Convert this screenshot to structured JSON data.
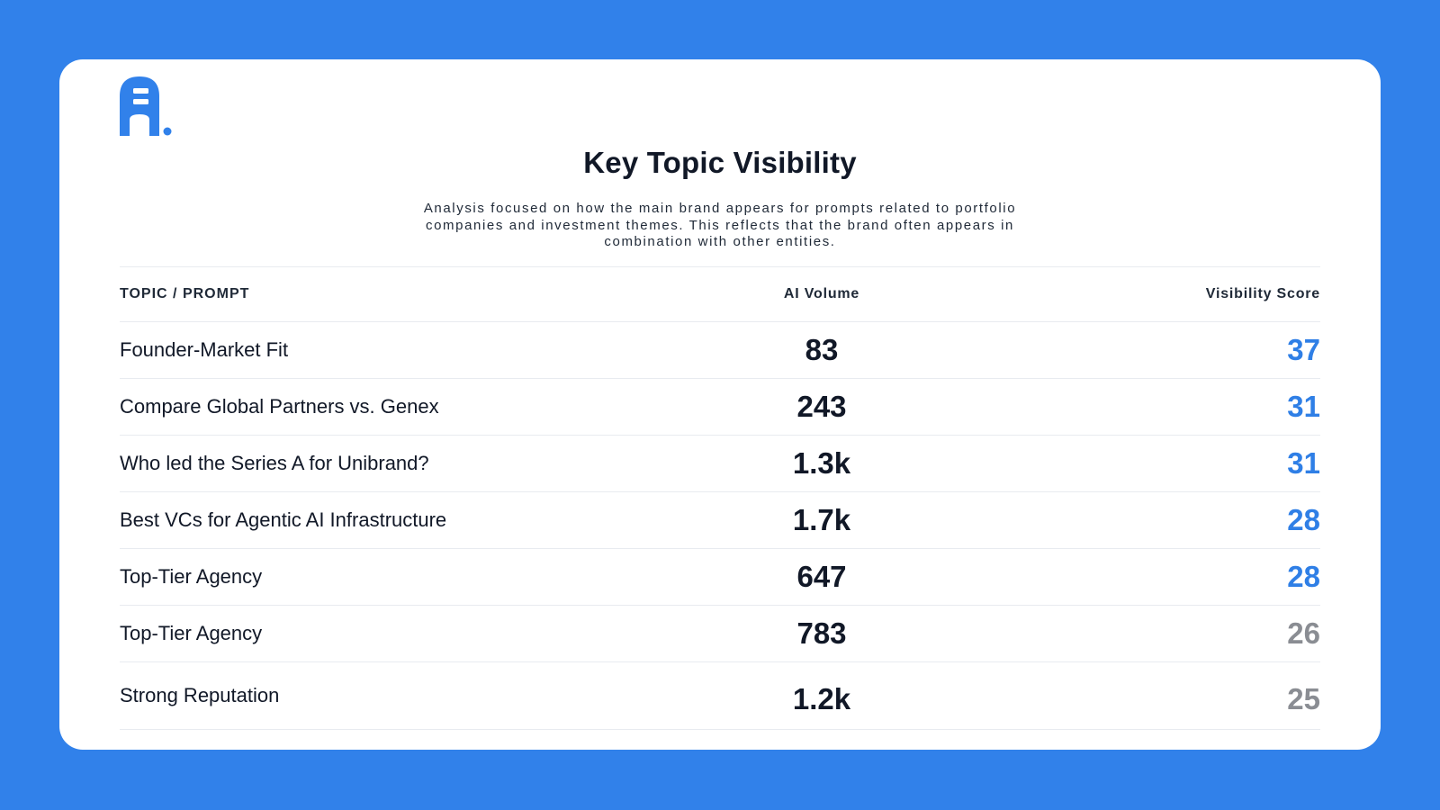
{
  "brand": {
    "logo_icon": "brand-logo-a-icon",
    "accent_color": "#3181ea"
  },
  "report": {
    "title": "Key Topic Visibility",
    "subtitle": "Analysis focused on how the main brand appears for prompts related to portfolio companies and investment themes. This reflects that the brand often appears in combination with other entities."
  },
  "table": {
    "headers": {
      "topic": "TOPIC / PROMPT",
      "volume": "AI Volume",
      "score": "Visibility Score"
    },
    "rows": [
      {
        "topic": "Founder-Market Fit",
        "volume": "83",
        "score": "37",
        "score_color": "#2f7fe6"
      },
      {
        "topic": "Compare Global Partners vs. Genex",
        "volume": "243",
        "score": "31",
        "score_color": "#2f7fe6"
      },
      {
        "topic": "Who led the Series A for Unibrand?",
        "volume": "1.3k",
        "score": "31",
        "score_color": "#2f7fe6"
      },
      {
        "topic": "Best VCs for Agentic AI Infrastructure",
        "volume": "1.7k",
        "score": "28",
        "score_color": "#2f7fe6"
      },
      {
        "topic": "Top-Tier Agency",
        "volume": "647",
        "score": "28",
        "score_color": "#2f7fe6"
      },
      {
        "topic": "Top-Tier Agency",
        "volume": "783",
        "score": "26",
        "score_color": "#8a8d93"
      },
      {
        "topic": "Strong Reputation",
        "volume": "1.2k",
        "score": "25",
        "score_color": "#8a8d93"
      }
    ]
  }
}
